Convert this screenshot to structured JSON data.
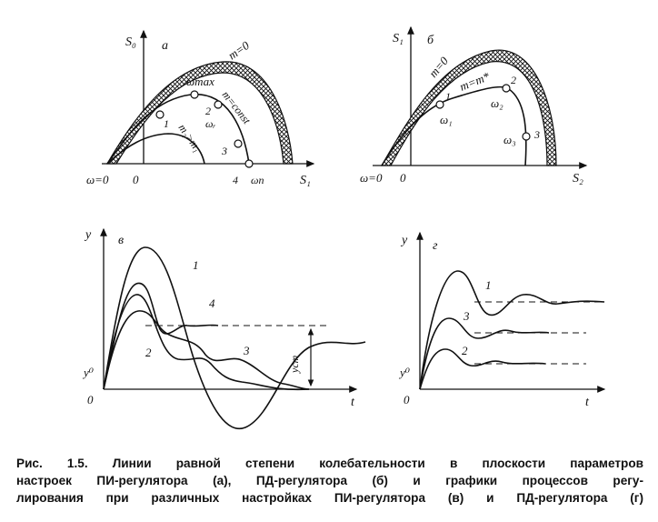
{
  "panel_a": {
    "letter": "а",
    "y_axis": "S₀",
    "x_axis": "S₁",
    "origin_omega": "ω=0",
    "origin": "0",
    "curve_outer": "m=0",
    "curve_mid": "m=const",
    "curve_inner": "m₂>m₁",
    "omega_max": "ωmax",
    "omega_r": "ωᵣ",
    "omega_pi": "ωп",
    "points": [
      "1",
      "2",
      "3",
      "4"
    ]
  },
  "panel_b": {
    "letter": "б",
    "y_axis": "S₁",
    "x_axis": "S₂",
    "origin_omega": "ω=0",
    "origin": "0",
    "curve_outer": "m=0",
    "curve_mid": "m=m*",
    "omega_1": "ω₁",
    "omega_2": "ω₂",
    "omega_3": "ω₃",
    "points": [
      "1",
      "2",
      "3"
    ]
  },
  "panel_c": {
    "letter": "в",
    "y_axis": "y",
    "x_axis": "t",
    "origin": "0",
    "y0": "y⁰",
    "y_st": "yст",
    "curves": [
      "1",
      "2",
      "3",
      "4"
    ]
  },
  "panel_d": {
    "letter": "г",
    "y_axis": "y",
    "x_axis": "t",
    "origin": "0",
    "y0": "y⁰",
    "curves": [
      "1",
      "2",
      "3"
    ]
  },
  "caption": {
    "line1": "Рис. 1.5. Линии равной степени колебательности в плоскости параметров",
    "line2": "настроек ПИ-регулятора (а), ПД-регулятора (б) и графики процессов регу-",
    "line3": "лирования при различных настройках ПИ-регулятора (в) и ПД-регулятора (г)"
  }
}
